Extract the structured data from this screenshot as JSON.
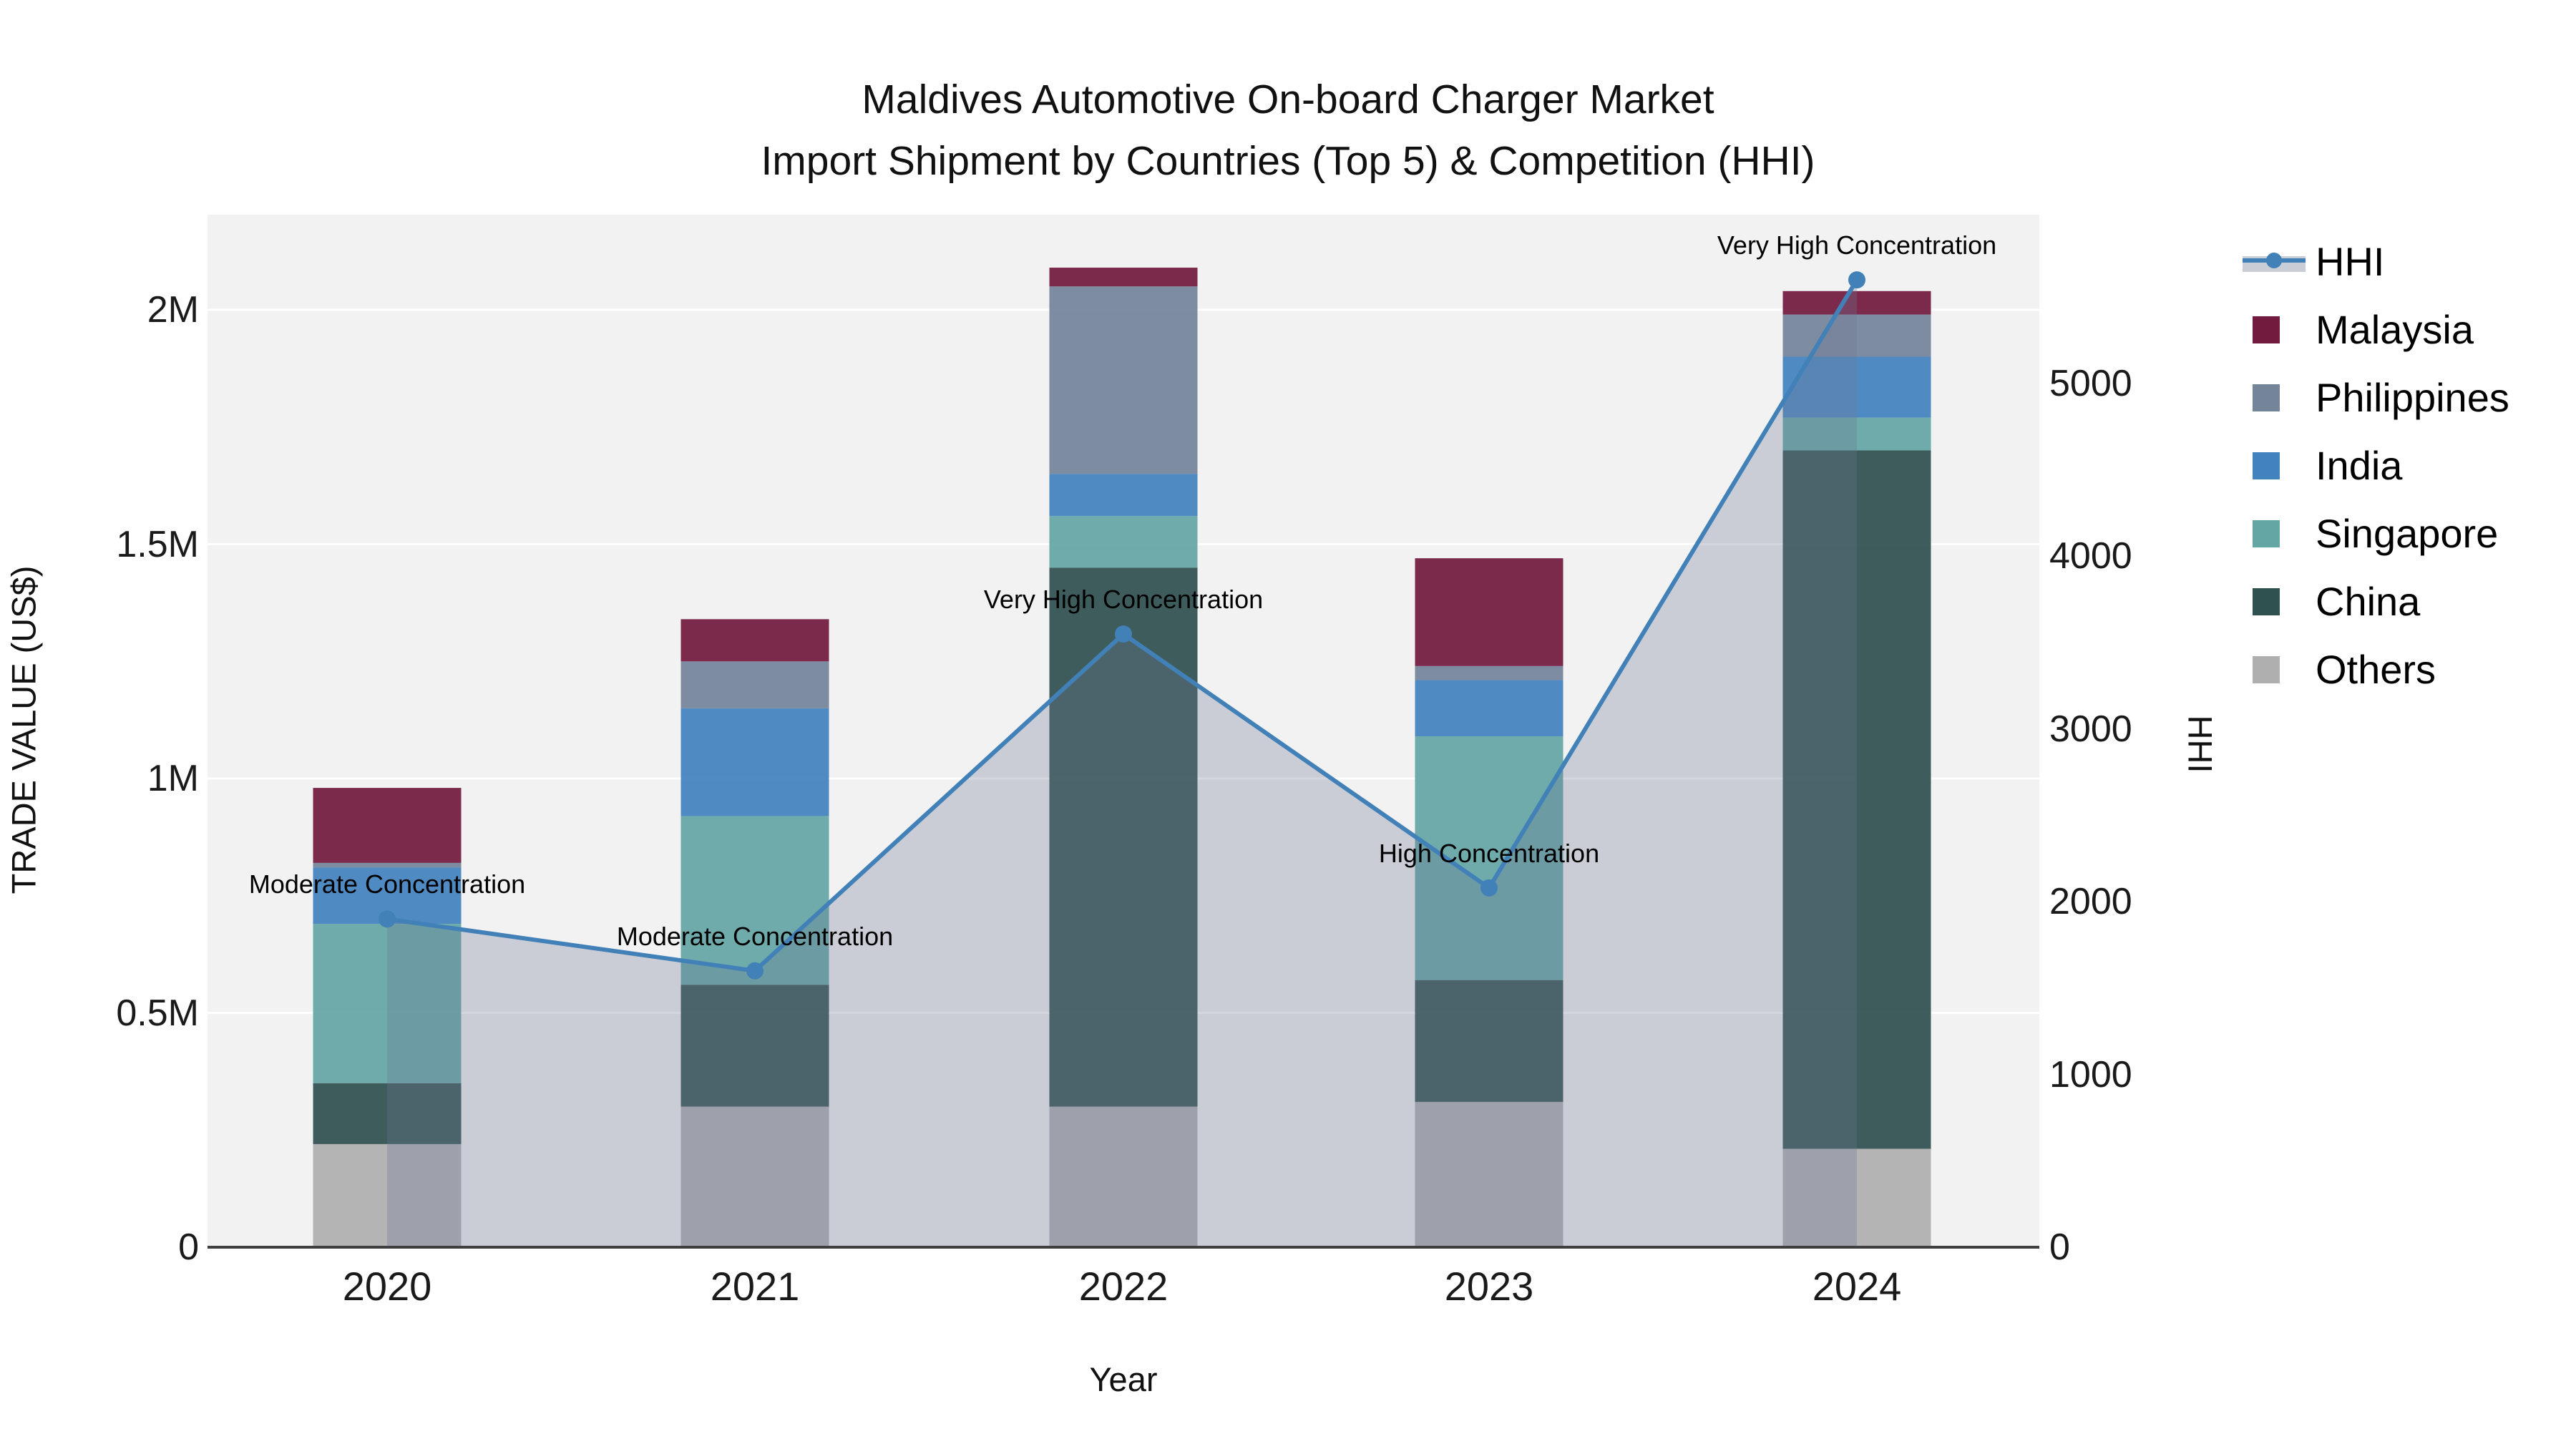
{
  "title": {
    "line1": "Maldives Automotive On-board Charger Market",
    "line2": "Import Shipment by Countries (Top 5) & Competition (HHI)"
  },
  "axes": {
    "y_left": {
      "title": "TRADE VALUE (US$)",
      "ticks": [
        "0",
        "0.5M",
        "1M",
        "1.5M",
        "2M"
      ],
      "tick_values_m": [
        0,
        0.5,
        1,
        1.5,
        2
      ]
    },
    "y_right": {
      "title": "HHI",
      "ticks": [
        "0",
        "1000",
        "2000",
        "3000",
        "4000",
        "5000"
      ],
      "tick_values": [
        0,
        1000,
        2000,
        3000,
        4000,
        5000
      ]
    },
    "x": {
      "title": "Year",
      "ticks": [
        "2020",
        "2021",
        "2022",
        "2023",
        "2024"
      ]
    }
  },
  "legend": {
    "items": [
      {
        "label": "HHI",
        "kind": "line"
      },
      {
        "label": "Malaysia",
        "kind": "swatch",
        "color": "#721B3E"
      },
      {
        "label": "Philippines",
        "kind": "swatch",
        "color": "#74849A"
      },
      {
        "label": "India",
        "kind": "swatch",
        "color": "#4383BD"
      },
      {
        "label": "Singapore",
        "kind": "swatch",
        "color": "#64A6A4"
      },
      {
        "label": "China",
        "kind": "swatch",
        "color": "#2F514F"
      },
      {
        "label": "Others",
        "kind": "swatch",
        "color": "#AFAFAF"
      }
    ]
  },
  "colors": {
    "plot_background": "#f2f2f3",
    "gridline": "#ffffff",
    "axis_line": "#3f3f3f",
    "hhi_line": "#4181B8",
    "hhi_area_fill": "rgba(108,120,148,0.30)",
    "malaysia": "#721B3E",
    "philippines": "#74849A",
    "india": "#4383BD",
    "singapore": "#64A6A4",
    "china": "#2F514F",
    "others": "#AFAFAF"
  },
  "chart_data": {
    "type": "bar",
    "subtype": "stacked-bars-with-line",
    "title": "Maldives Automotive On-board Charger Market — Import Shipment by Countries (Top 5) & Competition (HHI)",
    "categories": [
      "2020",
      "2021",
      "2022",
      "2023",
      "2024"
    ],
    "units_left": "Million US$",
    "units_right": "HHI index",
    "stack_order_bottom_to_top": [
      "Others",
      "China",
      "Singapore",
      "India",
      "Philippines",
      "Malaysia"
    ],
    "series": [
      {
        "name": "Others",
        "values": [
          0.22,
          0.3,
          0.3,
          0.31,
          0.21
        ]
      },
      {
        "name": "China",
        "values": [
          0.13,
          0.26,
          1.15,
          0.26,
          1.49
        ]
      },
      {
        "name": "Singapore",
        "values": [
          0.34,
          0.36,
          0.11,
          0.52,
          0.07
        ]
      },
      {
        "name": "India",
        "values": [
          0.12,
          0.23,
          0.09,
          0.12,
          0.13
        ]
      },
      {
        "name": "Philippines",
        "values": [
          0.01,
          0.1,
          0.4,
          0.03,
          0.09
        ]
      },
      {
        "name": "Malaysia",
        "values": [
          0.16,
          0.09,
          0.04,
          0.23,
          0.05
        ]
      }
    ],
    "bar_totals": [
      0.98,
      1.34,
      2.09,
      1.47,
      2.04
    ],
    "line_series": {
      "name": "HHI",
      "values": [
        1900,
        1600,
        3550,
        2080,
        5600
      ]
    },
    "annotations": [
      "Moderate Concentration",
      "Moderate Concentration",
      "Very High Concentration",
      "High Concentration",
      "Very High Concentration"
    ],
    "ylim_left_m": [
      0,
      2.2
    ],
    "ylim_right": [
      0,
      5980
    ],
    "grid": "horizontal-only",
    "legend_position": "right"
  }
}
